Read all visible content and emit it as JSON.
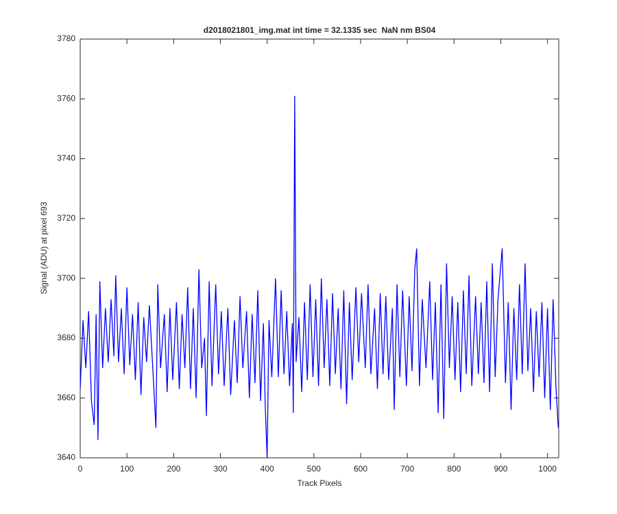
{
  "chart_data": {
    "type": "line",
    "title": "d2018021801_img.mat int time = 32.1335 sec  NaN nm BS04",
    "x_label": "Track Pixels",
    "y_label": "Signal (ADU) at pixel 693",
    "x": [
      0,
      6,
      12,
      18,
      24,
      30,
      34,
      38,
      42,
      48,
      54,
      60,
      66,
      72,
      76,
      82,
      88,
      94,
      100,
      106,
      112,
      118,
      124,
      130,
      136,
      142,
      148,
      156,
      162,
      166,
      172,
      180,
      186,
      192,
      198,
      206,
      212,
      218,
      224,
      230,
      236,
      242,
      248,
      254,
      260,
      266,
      270,
      276,
      282,
      290,
      296,
      302,
      308,
      316,
      322,
      330,
      336,
      342,
      348,
      356,
      362,
      368,
      374,
      380,
      386,
      392,
      396,
      400,
      404,
      410,
      418,
      424,
      430,
      436,
      442,
      448,
      454,
      456,
      459,
      462,
      468,
      474,
      480,
      486,
      492,
      498,
      504,
      510,
      516,
      522,
      528,
      534,
      540,
      546,
      552,
      558,
      564,
      570,
      576,
      582,
      590,
      596,
      602,
      610,
      616,
      622,
      630,
      636,
      642,
      648,
      654,
      660,
      668,
      672,
      678,
      684,
      690,
      698,
      704,
      710,
      716,
      720,
      726,
      732,
      740,
      748,
      754,
      760,
      766,
      772,
      778,
      784,
      790,
      796,
      802,
      808,
      814,
      820,
      826,
      832,
      838,
      846,
      852,
      858,
      864,
      870,
      876,
      882,
      888,
      894,
      903,
      910,
      916,
      922,
      928,
      934,
      940,
      946,
      952,
      958,
      964,
      970,
      976,
      982,
      988,
      994,
      1000,
      1006,
      1012,
      1018,
      1023
    ],
    "series": [
      {
        "name": "signal",
        "color": "#0000ff",
        "values": [
          3663,
          3686,
          3670,
          3689,
          3659,
          3651,
          3688,
          3646,
          3699,
          3670,
          3690,
          3672,
          3693,
          3674,
          3701,
          3672,
          3690,
          3668,
          3697,
          3671,
          3688,
          3666,
          3692,
          3661,
          3687,
          3672,
          3691,
          3668,
          3650,
          3698,
          3670,
          3688,
          3662,
          3690,
          3666,
          3692,
          3663,
          3688,
          3670,
          3697,
          3663,
          3690,
          3660,
          3703,
          3670,
          3680,
          3654,
          3699,
          3664,
          3698,
          3668,
          3689,
          3664,
          3690,
          3661,
          3686,
          3665,
          3694,
          3670,
          3689,
          3660,
          3688,
          3665,
          3696,
          3659,
          3685,
          3657,
          3640,
          3686,
          3667,
          3700,
          3667,
          3696,
          3668,
          3689,
          3664,
          3685,
          3655,
          3761,
          3672,
          3687,
          3662,
          3692,
          3666,
          3698,
          3667,
          3693,
          3664,
          3700,
          3670,
          3693,
          3664,
          3695,
          3668,
          3690,
          3663,
          3696,
          3658,
          3692,
          3666,
          3697,
          3672,
          3695,
          3670,
          3698,
          3668,
          3690,
          3663,
          3695,
          3668,
          3694,
          3666,
          3690,
          3656,
          3698,
          3667,
          3696,
          3664,
          3694,
          3669,
          3703,
          3710,
          3664,
          3693,
          3670,
          3699,
          3666,
          3692,
          3655,
          3698,
          3653,
          3705,
          3670,
          3694,
          3666,
          3692,
          3662,
          3696,
          3668,
          3701,
          3664,
          3694,
          3668,
          3692,
          3665,
          3699,
          3662,
          3705,
          3667,
          3693,
          3710,
          3665,
          3692,
          3656,
          3690,
          3666,
          3698,
          3668,
          3705,
          3669,
          3690,
          3662,
          3689,
          3667,
          3692,
          3660,
          3690,
          3656,
          3693,
          3664,
          3650
        ]
      }
    ],
    "xlim": [
      0,
      1024
    ],
    "ylim": [
      3640,
      3780
    ],
    "xticks": [
      0,
      100,
      200,
      300,
      400,
      500,
      600,
      700,
      800,
      900,
      1000
    ],
    "yticks": [
      3640,
      3660,
      3680,
      3700,
      3720,
      3740,
      3760,
      3780
    ],
    "grid": false
  }
}
